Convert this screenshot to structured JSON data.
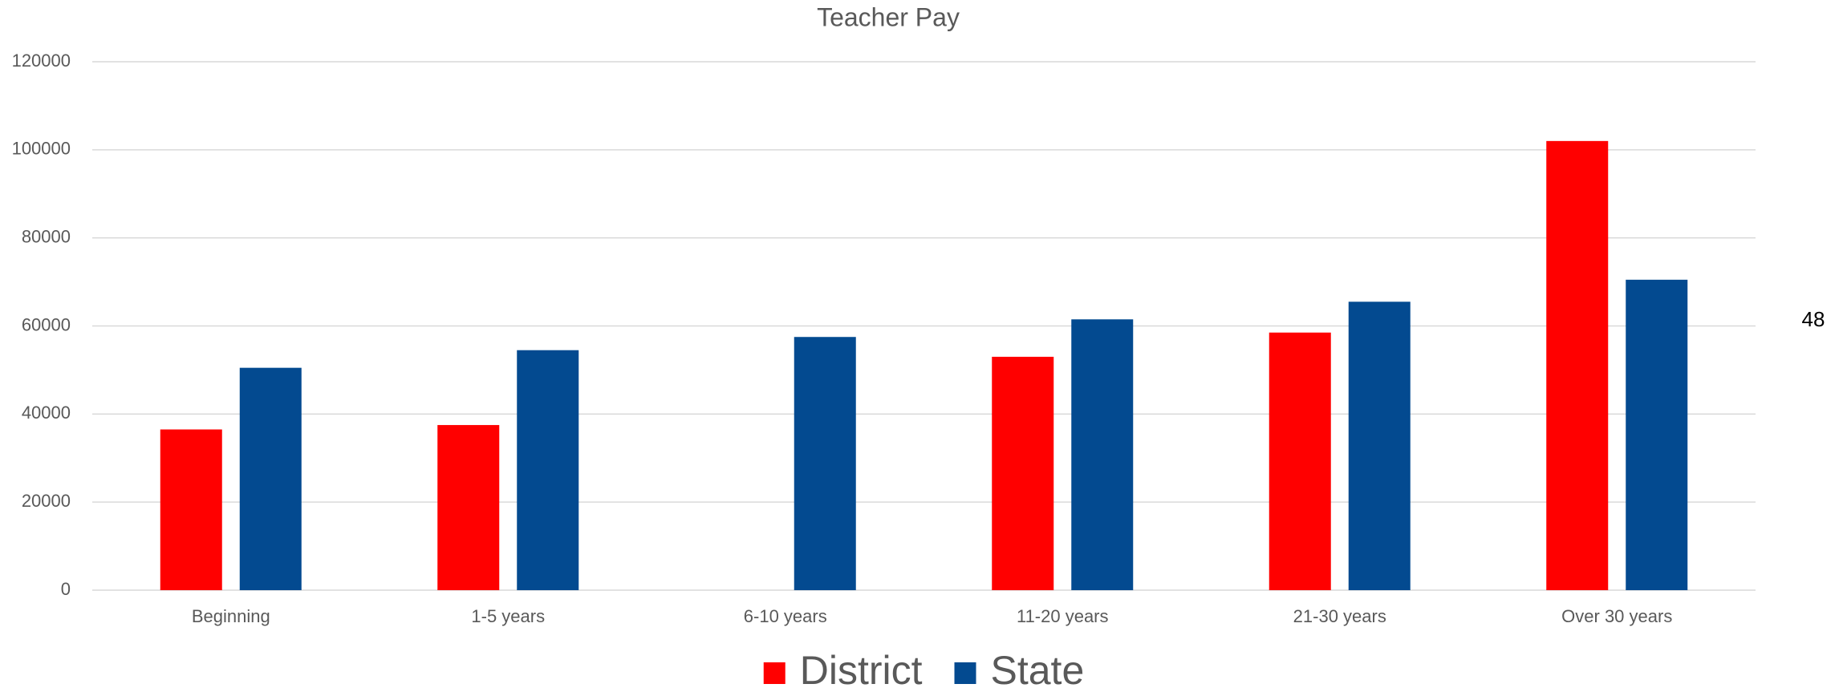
{
  "chart_data": {
    "type": "bar",
    "title": "Teacher Pay",
    "categories": [
      "Beginning",
      "1-5 years",
      "6-10 years",
      "11-20 years",
      "21-30 years",
      "Over 30 years"
    ],
    "series": [
      {
        "name": "District",
        "color": "#ff0000",
        "values": [
          36500,
          37500,
          null,
          53000,
          58500,
          102000
        ]
      },
      {
        "name": "State",
        "color": "#034a90",
        "values": [
          50500,
          54500,
          57500,
          61500,
          65500,
          70500
        ]
      }
    ],
    "ylim": [
      0,
      120000
    ],
    "yticks": [
      0,
      20000,
      40000,
      60000,
      80000,
      100000,
      120000
    ],
    "grid": true,
    "legend": "bottom",
    "annotation": "48"
  }
}
